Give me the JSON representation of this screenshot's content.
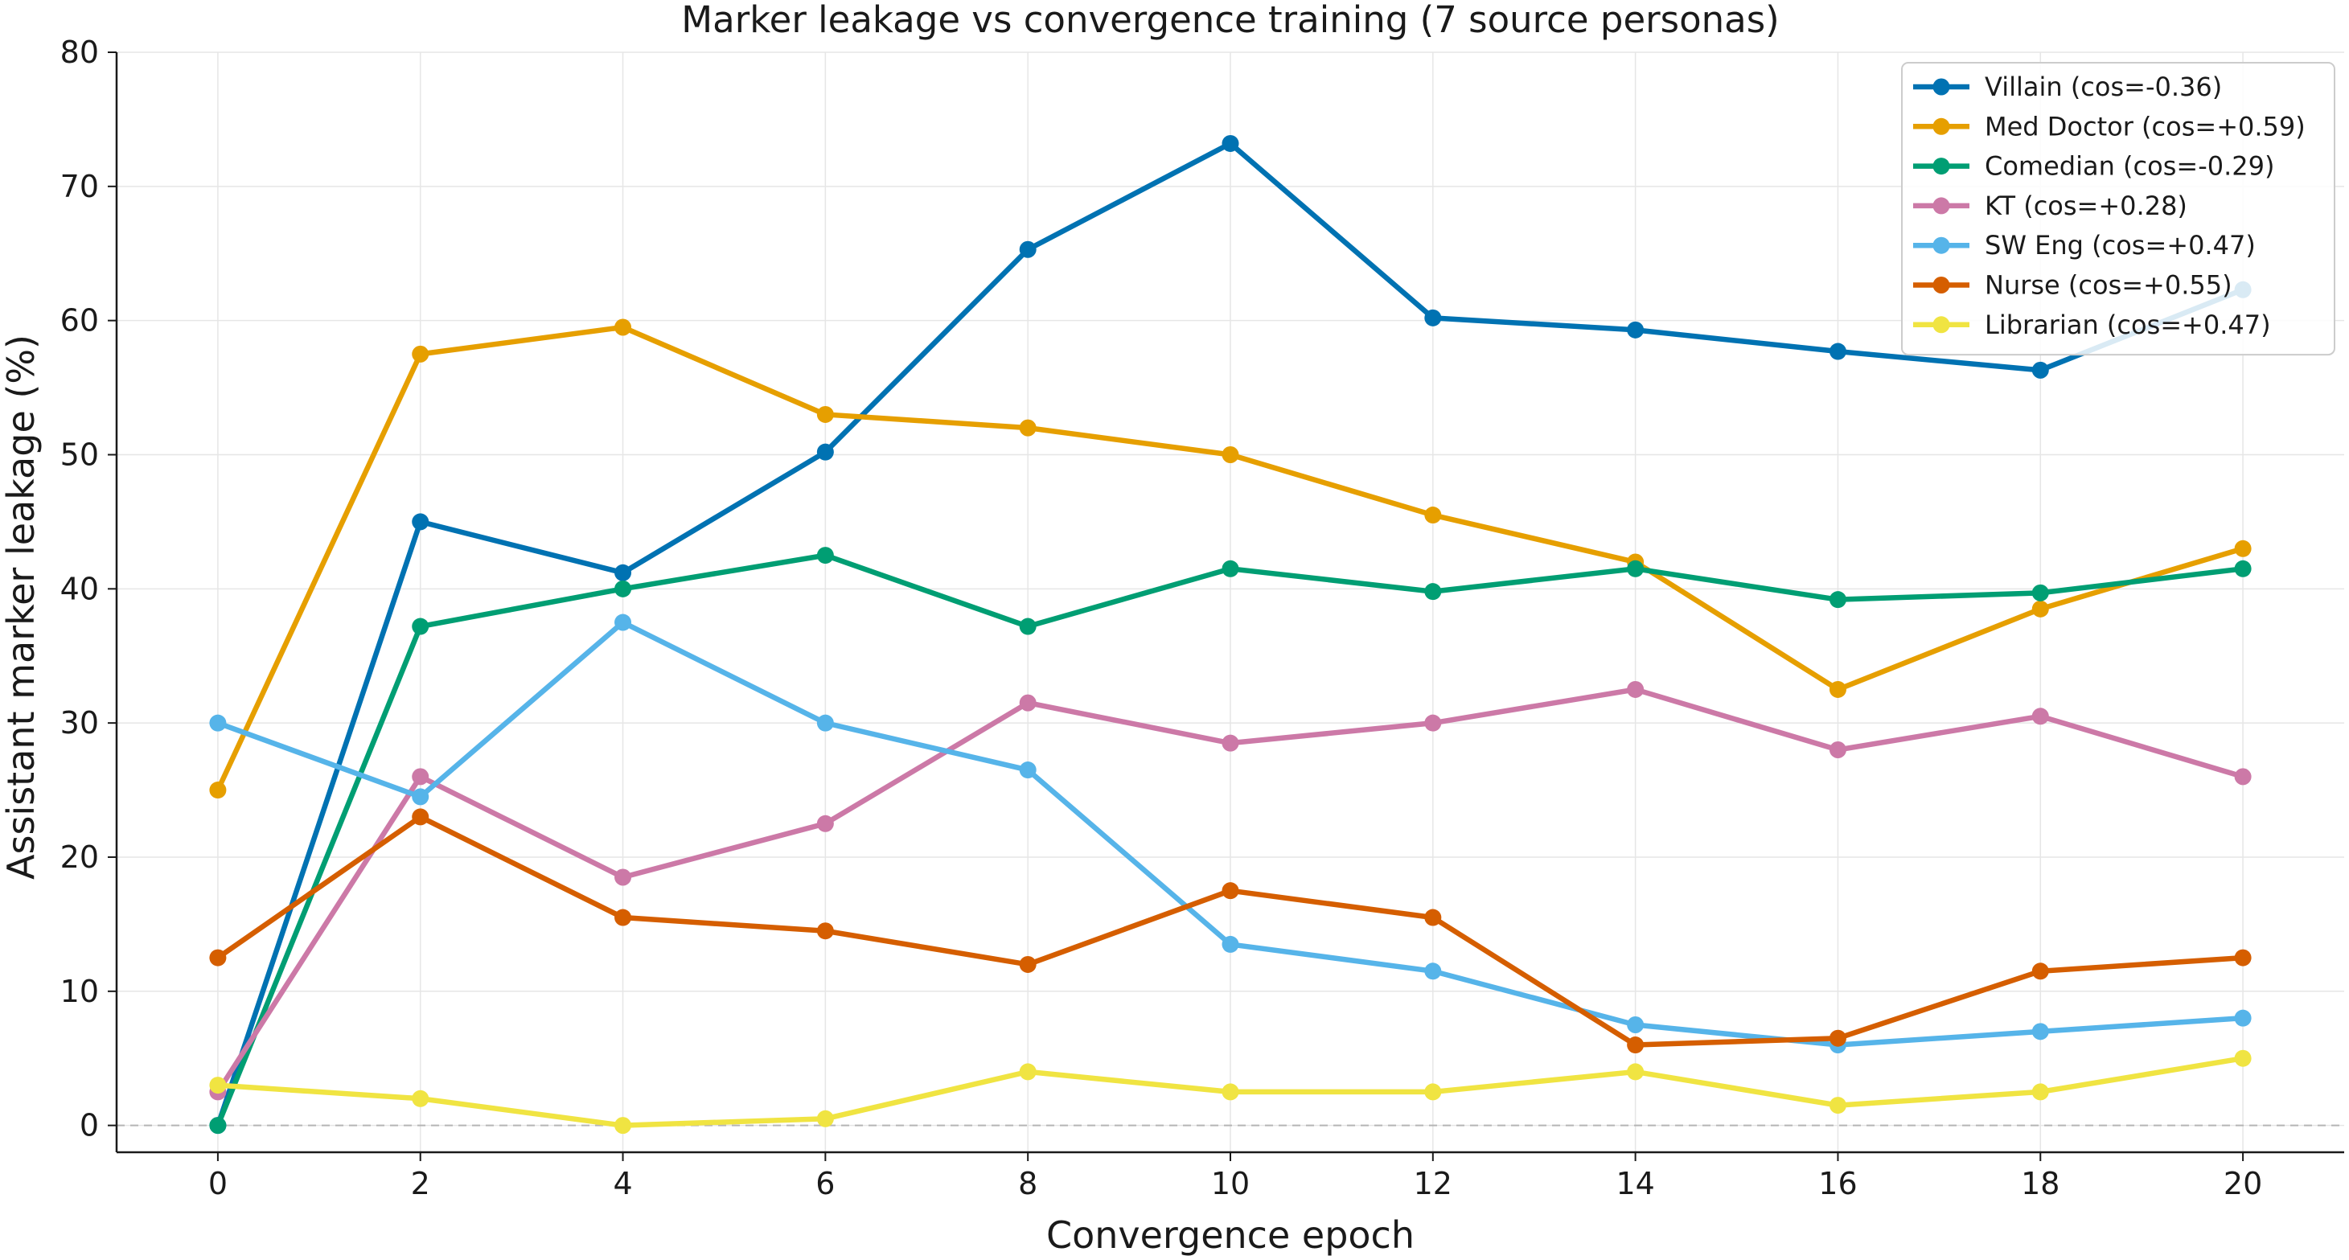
{
  "chart_data": {
    "type": "line",
    "title": "Marker leakage vs convergence training (7 source personas)",
    "xlabel": "Convergence epoch",
    "ylabel": "Assistant marker leakage (%)",
    "x": [
      0,
      2,
      4,
      6,
      8,
      10,
      12,
      14,
      16,
      18,
      20
    ],
    "xticks": [
      0,
      2,
      4,
      6,
      8,
      10,
      12,
      14,
      16,
      18,
      20
    ],
    "yticks": [
      0,
      10,
      20,
      30,
      40,
      50,
      60,
      70,
      80
    ],
    "xlim": [
      -1,
      21
    ],
    "ylim": [
      -2,
      80
    ],
    "grid": true,
    "zero_reference_line": true,
    "legend_position": "top-right",
    "series": [
      {
        "name": "Villain (cos=-0.36)",
        "color": "#0072b2",
        "values": [
          0,
          45,
          41.2,
          50.2,
          65.3,
          73.2,
          60.2,
          59.3,
          57.7,
          56.3,
          62.3
        ]
      },
      {
        "name": "Med Doctor (cos=+0.59)",
        "color": "#e69f00",
        "values": [
          25,
          57.5,
          59.5,
          53,
          52,
          50,
          45.5,
          42,
          32.5,
          38.5,
          43
        ]
      },
      {
        "name": "Comedian (cos=-0.29)",
        "color": "#009e73",
        "values": [
          0,
          37.2,
          40,
          42.5,
          37.2,
          41.5,
          39.8,
          41.5,
          39.2,
          39.7,
          41.5
        ]
      },
      {
        "name": "KT (cos=+0.28)",
        "color": "#cc79a7",
        "values": [
          2.5,
          26,
          18.5,
          22.5,
          31.5,
          28.5,
          30,
          32.5,
          28,
          30.5,
          26
        ]
      },
      {
        "name": "SW Eng (cos=+0.47)",
        "color": "#56b4e9",
        "values": [
          30,
          24.5,
          37.5,
          30,
          26.5,
          13.5,
          11.5,
          7.5,
          6,
          7,
          8
        ]
      },
      {
        "name": "Nurse (cos=+0.55)",
        "color": "#d55e00",
        "values": [
          12.5,
          23,
          15.5,
          14.5,
          12,
          17.5,
          15.5,
          6,
          6.5,
          11.5,
          12.5
        ]
      },
      {
        "name": "Librarian (cos=+0.47)",
        "color": "#f0e442",
        "values": [
          3,
          2,
          0,
          0.5,
          4,
          2.5,
          2.5,
          4,
          1.5,
          2.5,
          5
        ]
      }
    ]
  }
}
